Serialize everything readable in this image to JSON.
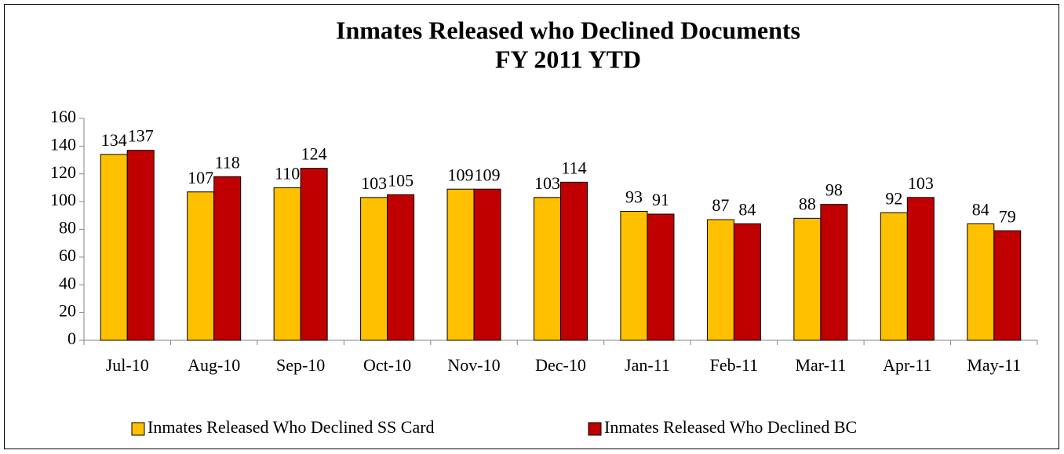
{
  "chart_data": {
    "type": "bar",
    "title": "Inmates Released who Declined Documents",
    "subtitle": "FY 2011 YTD",
    "categories": [
      "Jul-10",
      "Aug-10",
      "Sep-10",
      "Oct-10",
      "Nov-10",
      "Dec-10",
      "Jan-11",
      "Feb-11",
      "Mar-11",
      "Apr-11",
      "May-11"
    ],
    "series": [
      {
        "name": "Inmates Released Who Declined SS Card",
        "color": "#ffc000",
        "values": [
          134,
          107,
          110,
          103,
          109,
          103,
          93,
          87,
          88,
          92,
          84
        ]
      },
      {
        "name": "Inmates Released Who Declined BC",
        "color": "#c00000",
        "values": [
          137,
          118,
          124,
          105,
          109,
          114,
          91,
          84,
          98,
          103,
          79
        ]
      }
    ],
    "ylim": [
      0,
      160
    ],
    "yticks": [
      0,
      20,
      40,
      60,
      80,
      100,
      120,
      140,
      160
    ],
    "grid": false,
    "legend": "bottom"
  }
}
